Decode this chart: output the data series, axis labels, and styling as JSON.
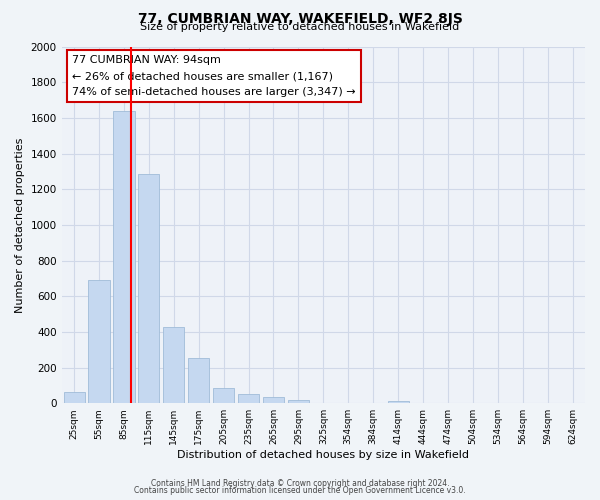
{
  "title": "77, CUMBRIAN WAY, WAKEFIELD, WF2 8JS",
  "subtitle": "Size of property relative to detached houses in Wakefield",
  "xlabel": "Distribution of detached houses by size in Wakefield",
  "ylabel": "Number of detached properties",
  "bar_labels": [
    "25sqm",
    "55sqm",
    "85sqm",
    "115sqm",
    "145sqm",
    "175sqm",
    "205sqm",
    "235sqm",
    "265sqm",
    "295sqm",
    "325sqm",
    "354sqm",
    "384sqm",
    "414sqm",
    "444sqm",
    "474sqm",
    "504sqm",
    "534sqm",
    "564sqm",
    "594sqm",
    "624sqm"
  ],
  "bar_values": [
    65,
    690,
    1640,
    1285,
    430,
    255,
    88,
    50,
    35,
    20,
    0,
    0,
    0,
    15,
    0,
    0,
    0,
    0,
    0,
    0,
    0
  ],
  "bar_color": "#c5d8f0",
  "bar_edge_color": "#a0bcd8",
  "property_sqm": 94,
  "ylim": [
    0,
    2000
  ],
  "annotation_line1": "77 CUMBRIAN WAY: 94sqm",
  "annotation_line2": "← 26% of detached houses are smaller (1,167)",
  "annotation_line3": "74% of semi-detached houses are larger (3,347) →",
  "footnote1": "Contains HM Land Registry data © Crown copyright and database right 2024.",
  "footnote2": "Contains public sector information licensed under the Open Government Licence v3.0.",
  "grid_color": "#d0d8e8",
  "background_color": "#f0f4f8",
  "plot_bg_color": "#eef2f8"
}
